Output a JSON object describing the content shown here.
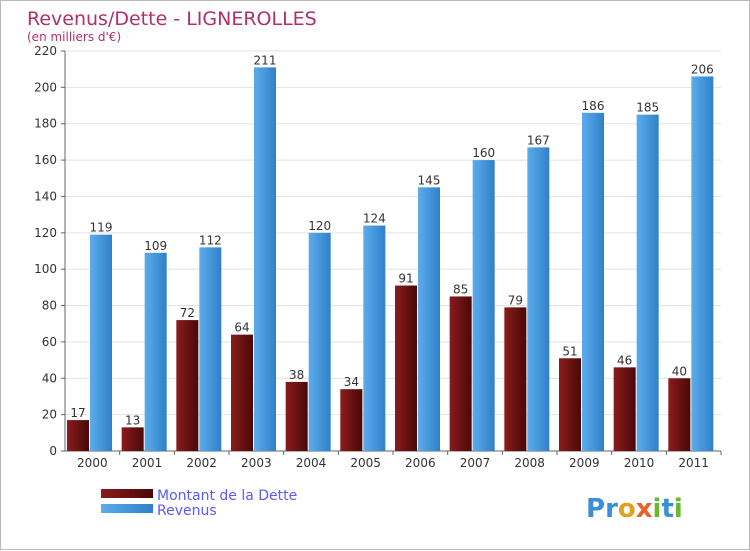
{
  "title": "Revenus/Dette - LIGNEROLLES",
  "subtitle": "(en milliers d'€)",
  "logo": "Proxiti",
  "colors": {
    "title": "#b0306a",
    "dette": "#7a1414",
    "revenus": "#4a9ee0",
    "legend_text": "#5a5aff"
  },
  "chart_data": {
    "type": "bar",
    "categories": [
      "2000",
      "2001",
      "2002",
      "2003",
      "2004",
      "2005",
      "2006",
      "2007",
      "2008",
      "2009",
      "2010",
      "2011"
    ],
    "series": [
      {
        "name": "Montant de la Dette",
        "values": [
          17,
          13,
          72,
          64,
          38,
          34,
          91,
          85,
          79,
          51,
          46,
          40
        ]
      },
      {
        "name": "Revenus",
        "values": [
          119,
          109,
          112,
          211,
          120,
          124,
          145,
          160,
          167,
          186,
          185,
          206
        ]
      }
    ],
    "yticks": [
      0,
      20,
      40,
      60,
      80,
      100,
      120,
      140,
      160,
      180,
      200,
      220
    ],
    "ylim": [
      0,
      220
    ],
    "grid": true,
    "legend_position": "bottom-left"
  }
}
